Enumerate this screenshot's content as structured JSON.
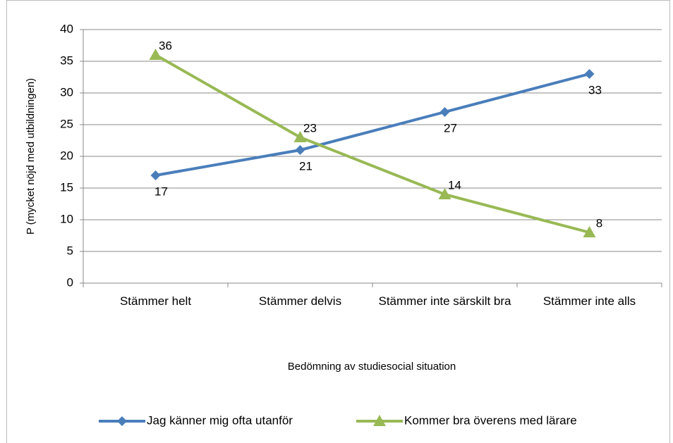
{
  "chart_data": {
    "type": "line",
    "x_label": "Bedömning av studiesocial situation",
    "y_label": "P (mycket nöjd med utbildningen)",
    "categories": [
      "Stämmer helt",
      "Stämmer delvis",
      "Stämmer inte särskilt bra",
      "Stämmer inte alls"
    ],
    "series": [
      {
        "name": "Jag känner mig ofta utanför",
        "color": "#4a7ebb",
        "marker": "diamond",
        "label_position": "below",
        "values": [
          17,
          21,
          27,
          33
        ]
      },
      {
        "name": "Kommer bra överens med lärare",
        "color": "#98b954",
        "marker": "triangle",
        "label_position": "above",
        "values": [
          36,
          23,
          14,
          8
        ]
      }
    ],
    "ylim": [
      0,
      40
    ],
    "yticks": [
      0,
      5,
      10,
      15,
      20,
      25,
      30,
      35,
      40
    ],
    "grid": true,
    "legend": "bottom"
  }
}
